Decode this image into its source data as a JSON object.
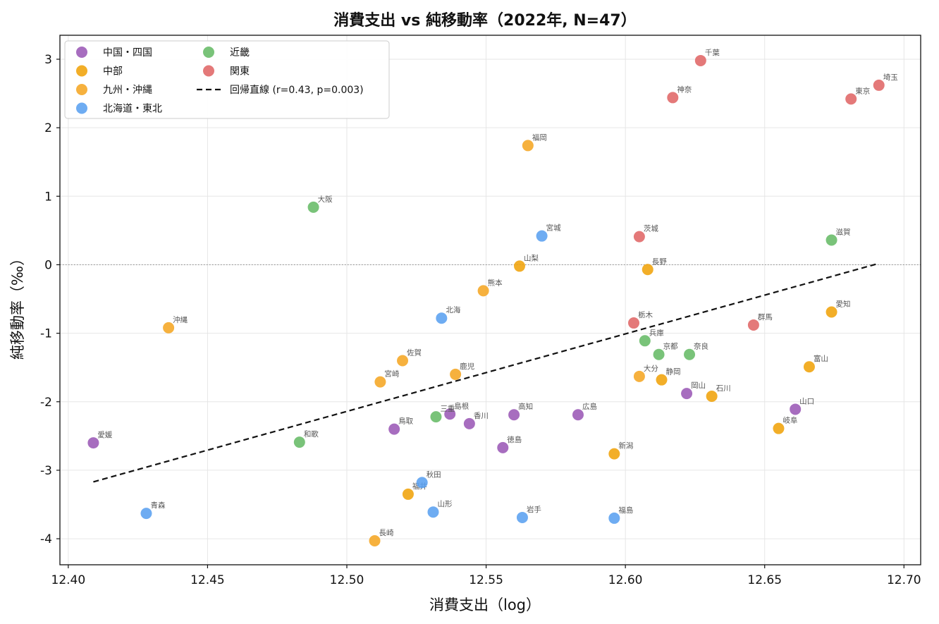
{
  "chart_data": {
    "type": "scatter",
    "title": "消費支出 vs 純移動率（2022年, N=47）",
    "xlabel": "消費支出（log）",
    "ylabel": "純移動率（‰）",
    "xlim": [
      12.397,
      12.706
    ],
    "ylim": [
      -4.38,
      3.35
    ],
    "xticks": [
      12.4,
      12.45,
      12.5,
      12.55,
      12.6,
      12.65,
      12.7
    ],
    "xtick_labels": [
      "12.40",
      "12.45",
      "12.50",
      "12.55",
      "12.60",
      "12.65",
      "12.70"
    ],
    "yticks": [
      3,
      2,
      1,
      0,
      -1,
      -2,
      -3,
      -4
    ],
    "ytick_labels": [
      "3",
      "2",
      "1",
      "0",
      "-1",
      "-2",
      "-3",
      "-4"
    ],
    "grid": true,
    "zero_line": true,
    "legend_placement": "top-left",
    "legend_columns": 2,
    "regression": {
      "label": "回帰直線 (r=0.43, p=0.003)",
      "x": [
        12.409,
        12.691
      ],
      "y": [
        -3.17,
        0.02
      ]
    },
    "series": [
      {
        "name": "中国・四国",
        "color": "#9b59b6",
        "points": [
          {
            "label": "愛媛",
            "x": 12.409,
            "y": -2.6
          },
          {
            "label": "鳥取",
            "x": 12.517,
            "y": -2.4
          },
          {
            "label": "島根",
            "x": 12.537,
            "y": -2.18
          },
          {
            "label": "香川",
            "x": 12.544,
            "y": -2.32
          },
          {
            "label": "徳島",
            "x": 12.556,
            "y": -2.67
          },
          {
            "label": "高知",
            "x": 12.56,
            "y": -2.19
          },
          {
            "label": "広島",
            "x": 12.583,
            "y": -2.19
          },
          {
            "label": "岡山",
            "x": 12.622,
            "y": -1.88
          },
          {
            "label": "山口",
            "x": 12.661,
            "y": -2.11
          }
        ]
      },
      {
        "name": "中部",
        "color": "#f0a30a",
        "points": [
          {
            "label": "福井",
            "x": 12.522,
            "y": -3.35
          },
          {
            "label": "山梨",
            "x": 12.562,
            "y": -0.02
          },
          {
            "label": "新潟",
            "x": 12.596,
            "y": -2.76
          },
          {
            "label": "長野",
            "x": 12.608,
            "y": -0.07
          },
          {
            "label": "静岡",
            "x": 12.613,
            "y": -1.68
          },
          {
            "label": "石川",
            "x": 12.631,
            "y": -1.92
          },
          {
            "label": "岐阜",
            "x": 12.655,
            "y": -2.39
          },
          {
            "label": "富山",
            "x": 12.666,
            "y": -1.49
          },
          {
            "label": "愛知",
            "x": 12.674,
            "y": -0.69
          }
        ]
      },
      {
        "name": "九州・沖縄",
        "color": "#f5a623",
        "points": [
          {
            "label": "沖縄",
            "x": 12.436,
            "y": -0.92
          },
          {
            "label": "長崎",
            "x": 12.51,
            "y": -4.03
          },
          {
            "label": "宮崎",
            "x": 12.512,
            "y": -1.71
          },
          {
            "label": "佐賀",
            "x": 12.52,
            "y": -1.4
          },
          {
            "label": "鹿児",
            "x": 12.539,
            "y": -1.6
          },
          {
            "label": "熊本",
            "x": 12.549,
            "y": -0.38
          },
          {
            "label": "福岡",
            "x": 12.565,
            "y": 1.74
          },
          {
            "label": "大分",
            "x": 12.605,
            "y": -1.63
          }
        ]
      },
      {
        "name": "北海道・東北",
        "color": "#5aa0f0",
        "points": [
          {
            "label": "青森",
            "x": 12.428,
            "y": -3.63
          },
          {
            "label": "秋田",
            "x": 12.527,
            "y": -3.18
          },
          {
            "label": "山形",
            "x": 12.531,
            "y": -3.61
          },
          {
            "label": "北海",
            "x": 12.534,
            "y": -0.78
          },
          {
            "label": "岩手",
            "x": 12.563,
            "y": -3.69
          },
          {
            "label": "宮城",
            "x": 12.57,
            "y": 0.42
          },
          {
            "label": "福島",
            "x": 12.596,
            "y": -3.7
          }
        ]
      },
      {
        "name": "近畿",
        "color": "#66bb66",
        "points": [
          {
            "label": "和歌",
            "x": 12.483,
            "y": -2.59
          },
          {
            "label": "大阪",
            "x": 12.488,
            "y": 0.84
          },
          {
            "label": "三重",
            "x": 12.532,
            "y": -2.22
          },
          {
            "label": "兵庫",
            "x": 12.607,
            "y": -1.11
          },
          {
            "label": "京都",
            "x": 12.612,
            "y": -1.31
          },
          {
            "label": "奈良",
            "x": 12.623,
            "y": -1.31
          },
          {
            "label": "滋賀",
            "x": 12.674,
            "y": 0.36
          }
        ]
      },
      {
        "name": "関東",
        "color": "#e06666",
        "points": [
          {
            "label": "栃木",
            "x": 12.603,
            "y": -0.85
          },
          {
            "label": "茨城",
            "x": 12.605,
            "y": 0.41
          },
          {
            "label": "神奈",
            "x": 12.617,
            "y": 2.44
          },
          {
            "label": "千葉",
            "x": 12.627,
            "y": 2.98
          },
          {
            "label": "群馬",
            "x": 12.646,
            "y": -0.88
          },
          {
            "label": "東京",
            "x": 12.681,
            "y": 2.42
          },
          {
            "label": "埼玉",
            "x": 12.691,
            "y": 2.62
          }
        ]
      }
    ]
  }
}
